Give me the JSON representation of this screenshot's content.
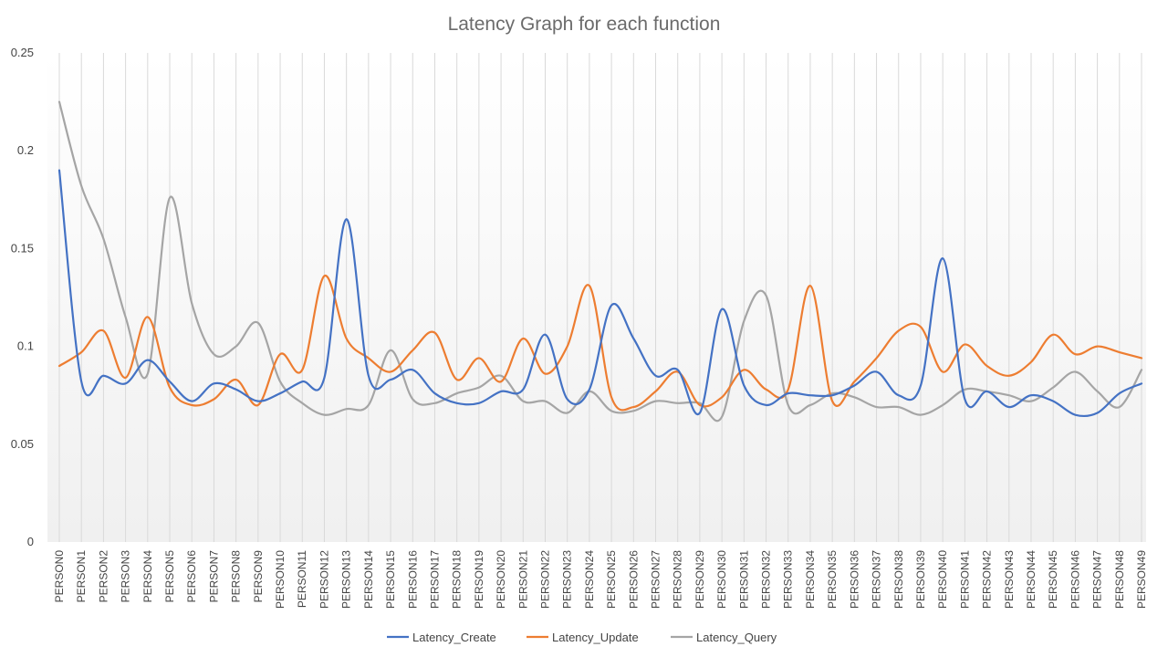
{
  "chart_data": {
    "type": "line",
    "title": "Latency Graph for each function",
    "xlabel": "",
    "ylabel": "",
    "ylim": [
      0,
      0.25
    ],
    "yticks": [
      0,
      0.05,
      0.1,
      0.15,
      0.2,
      0.25
    ],
    "ytick_labels": [
      "0",
      "0.05",
      "0.1",
      "0.15",
      "0.2",
      "0.25"
    ],
    "grid": "vertical",
    "smooth": true,
    "legend_position": "bottom",
    "categories": [
      "PERSON0",
      "PERSON1",
      "PERSON2",
      "PERSON3",
      "PERSON4",
      "PERSON5",
      "PERSON6",
      "PERSON7",
      "PERSON8",
      "PERSON9",
      "PERSON10",
      "PERSON11",
      "PERSON12",
      "PERSON13",
      "PERSON14",
      "PERSON15",
      "PERSON16",
      "PERSON17",
      "PERSON18",
      "PERSON19",
      "PERSON20",
      "PERSON21",
      "PERSON22",
      "PERSON23",
      "PERSON24",
      "PERSON25",
      "PERSON26",
      "PERSON27",
      "PERSON28",
      "PERSON29",
      "PERSON30",
      "PERSON31",
      "PERSON32",
      "PERSON33",
      "PERSON34",
      "PERSON35",
      "PERSON36",
      "PERSON37",
      "PERSON38",
      "PERSON39",
      "PERSON40",
      "PERSON41",
      "PERSON42",
      "PERSON43",
      "PERSON44",
      "PERSON45",
      "PERSON46",
      "PERSON47",
      "PERSON48",
      "PERSON49"
    ],
    "series": [
      {
        "name": "Latency_Create",
        "color": "#4472c4",
        "values": [
          0.19,
          0.082,
          0.085,
          0.081,
          0.093,
          0.082,
          0.072,
          0.081,
          0.078,
          0.072,
          0.076,
          0.082,
          0.084,
          0.165,
          0.085,
          0.083,
          0.088,
          0.076,
          0.071,
          0.071,
          0.077,
          0.078,
          0.106,
          0.073,
          0.078,
          0.121,
          0.104,
          0.085,
          0.088,
          0.066,
          0.119,
          0.08,
          0.07,
          0.076,
          0.075,
          0.075,
          0.08,
          0.087,
          0.075,
          0.08,
          0.145,
          0.073,
          0.077,
          0.069,
          0.075,
          0.072,
          0.065,
          0.066,
          0.076,
          0.081
        ]
      },
      {
        "name": "Latency_Update",
        "color": "#ed7d31",
        "values": [
          0.09,
          0.097,
          0.108,
          0.084,
          0.115,
          0.079,
          0.07,
          0.073,
          0.083,
          0.07,
          0.096,
          0.088,
          0.136,
          0.104,
          0.094,
          0.087,
          0.098,
          0.107,
          0.083,
          0.094,
          0.082,
          0.104,
          0.086,
          0.1,
          0.131,
          0.074,
          0.069,
          0.077,
          0.087,
          0.07,
          0.074,
          0.088,
          0.078,
          0.078,
          0.131,
          0.072,
          0.082,
          0.094,
          0.108,
          0.11,
          0.087,
          0.101,
          0.09,
          0.085,
          0.092,
          0.106,
          0.096,
          0.1,
          0.097,
          0.094
        ]
      },
      {
        "name": "Latency_Query",
        "color": "#a5a5a5",
        "values": [
          0.225,
          0.182,
          0.155,
          0.115,
          0.086,
          0.176,
          0.122,
          0.096,
          0.1,
          0.112,
          0.082,
          0.071,
          0.065,
          0.068,
          0.07,
          0.098,
          0.073,
          0.071,
          0.076,
          0.079,
          0.085,
          0.072,
          0.072,
          0.066,
          0.077,
          0.067,
          0.067,
          0.072,
          0.071,
          0.071,
          0.064,
          0.113,
          0.126,
          0.07,
          0.07,
          0.076,
          0.074,
          0.069,
          0.069,
          0.065,
          0.07,
          0.078,
          0.077,
          0.075,
          0.072,
          0.079,
          0.087,
          0.077,
          0.069,
          0.088
        ]
      }
    ]
  }
}
